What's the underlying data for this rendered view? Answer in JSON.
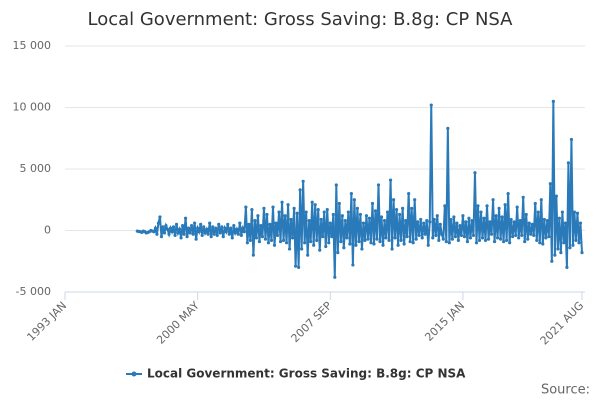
{
  "chart_data": {
    "type": "line",
    "title": "Local Government: Gross Saving: B.8g: CP NSA",
    "source": "Source:",
    "xlim": [
      "1993-01",
      "2021-10"
    ],
    "xticks": [
      {
        "value": "1993-01",
        "label": "1993 JAN"
      },
      {
        "value": "2000-05",
        "label": "2000 MAY"
      },
      {
        "value": "2007-09",
        "label": "2007 SEP"
      },
      {
        "value": "2015-01",
        "label": "2015 JAN"
      },
      {
        "value": "2021-08",
        "label": "2021 AUG"
      }
    ],
    "ylim": [
      -5000,
      15000
    ],
    "yticks": [
      {
        "value": -5000,
        "label": "-5 000"
      },
      0,
      {
        "value": 5000,
        "label": "5 000"
      },
      {
        "value": 10000,
        "label": "10 000"
      },
      {
        "value": 15000,
        "label": "15 000"
      }
    ],
    "grid": true,
    "legend": "bottom",
    "x": [
      "1997-01",
      "1997-02",
      "1997-03",
      "1997-04",
      "1997-05",
      "1997-06",
      "1997-07",
      "1997-08",
      "1997-09",
      "1997-10",
      "1997-11",
      "1997-12",
      "1998-01",
      "1998-02",
      "1998-03",
      "1998-04",
      "1998-05",
      "1998-06",
      "1998-07",
      "1998-08",
      "1998-09",
      "1998-10",
      "1998-11",
      "1998-12",
      "1999-01",
      "1999-02",
      "1999-03",
      "1999-04",
      "1999-05",
      "1999-06",
      "1999-07",
      "1999-08",
      "1999-09",
      "1999-10",
      "1999-11",
      "1999-12",
      "2000-01",
      "2000-02",
      "2000-03",
      "2000-04",
      "2000-05",
      "2000-06",
      "2000-07",
      "2000-08",
      "2000-09",
      "2000-10",
      "2000-11",
      "2000-12",
      "2001-01",
      "2001-02",
      "2001-03",
      "2001-04",
      "2001-05",
      "2001-06",
      "2001-07",
      "2001-08",
      "2001-09",
      "2001-10",
      "2001-11",
      "2001-12",
      "2002-01",
      "2002-02",
      "2002-03",
      "2002-04",
      "2002-05",
      "2002-06",
      "2002-07",
      "2002-08",
      "2002-09",
      "2002-10",
      "2002-11",
      "2002-12",
      "2003-01",
      "2003-02",
      "2003-03",
      "2003-04",
      "2003-05",
      "2003-06",
      "2003-07",
      "2003-08",
      "2003-09",
      "2003-10",
      "2003-11",
      "2003-12",
      "2004-01",
      "2004-02",
      "2004-03",
      "2004-04",
      "2004-05",
      "2004-06",
      "2004-07",
      "2004-08",
      "2004-09",
      "2004-10",
      "2004-11",
      "2004-12",
      "2005-01",
      "2005-02",
      "2005-03",
      "2005-04",
      "2005-05",
      "2005-06",
      "2005-07",
      "2005-08",
      "2005-09",
      "2005-10",
      "2005-11",
      "2005-12",
      "2006-01",
      "2006-02",
      "2006-03",
      "2006-04",
      "2006-05",
      "2006-06",
      "2006-07",
      "2006-08",
      "2006-09",
      "2006-10",
      "2006-11",
      "2006-12",
      "2007-01",
      "2007-02",
      "2007-03",
      "2007-04",
      "2007-05",
      "2007-06",
      "2007-07",
      "2007-08",
      "2007-09",
      "2007-10",
      "2007-11",
      "2007-12",
      "2008-01",
      "2008-02",
      "2008-03",
      "2008-04",
      "2008-05",
      "2008-06",
      "2008-07",
      "2008-08",
      "2008-09",
      "2008-10",
      "2008-11",
      "2008-12",
      "2009-01",
      "2009-02",
      "2009-03",
      "2009-04",
      "2009-05",
      "2009-06",
      "2009-07",
      "2009-08",
      "2009-09",
      "2009-10",
      "2009-11",
      "2009-12",
      "2010-01",
      "2010-02",
      "2010-03",
      "2010-04",
      "2010-05",
      "2010-06",
      "2010-07",
      "2010-08",
      "2010-09",
      "2010-10",
      "2010-11",
      "2010-12",
      "2011-01",
      "2011-02",
      "2011-03",
      "2011-04",
      "2011-05",
      "2011-06",
      "2011-07",
      "2011-08",
      "2011-09",
      "2011-10",
      "2011-11",
      "2011-12",
      "2012-01",
      "2012-02",
      "2012-03",
      "2012-04",
      "2012-05",
      "2012-06",
      "2012-07",
      "2012-08",
      "2012-09",
      "2012-10",
      "2012-11",
      "2012-12",
      "2013-01",
      "2013-02",
      "2013-03",
      "2013-04",
      "2013-05",
      "2013-06",
      "2013-07",
      "2013-08",
      "2013-09",
      "2013-10",
      "2013-11",
      "2013-12",
      "2014-01",
      "2014-02",
      "2014-03",
      "2014-04",
      "2014-05",
      "2014-06",
      "2014-07",
      "2014-08",
      "2014-09",
      "2014-10",
      "2014-11",
      "2014-12",
      "2015-01",
      "2015-02",
      "2015-03",
      "2015-04",
      "2015-05",
      "2015-06",
      "2015-07",
      "2015-08",
      "2015-09",
      "2015-10",
      "2015-11",
      "2015-12",
      "2016-01",
      "2016-02",
      "2016-03",
      "2016-04",
      "2016-05",
      "2016-06",
      "2016-07",
      "2016-08",
      "2016-09",
      "2016-10",
      "2016-11",
      "2016-12",
      "2017-01",
      "2017-02",
      "2017-03",
      "2017-04",
      "2017-05",
      "2017-06",
      "2017-07",
      "2017-08",
      "2017-09",
      "2017-10",
      "2017-11",
      "2017-12",
      "2018-01",
      "2018-02",
      "2018-03",
      "2018-04",
      "2018-05",
      "2018-06",
      "2018-07",
      "2018-08",
      "2018-09",
      "2018-10",
      "2018-11",
      "2018-12",
      "2019-01",
      "2019-02",
      "2019-03",
      "2019-04",
      "2019-05",
      "2019-06",
      "2019-07",
      "2019-08",
      "2019-09",
      "2019-10",
      "2019-11",
      "2019-12",
      "2020-01",
      "2020-02",
      "2020-03",
      "2020-04",
      "2020-05",
      "2020-06",
      "2020-07",
      "2020-08",
      "2020-09",
      "2020-10",
      "2020-11",
      "2020-12",
      "2021-01",
      "2021-02",
      "2021-03",
      "2021-04",
      "2021-05",
      "2021-06",
      "2021-07",
      "2021-08"
    ],
    "series": [
      {
        "name": "Local Government: Gross Saving: B.8g: CP NSA",
        "color": "#2a7ab9",
        "values": [
          -50,
          -80,
          -100,
          -150,
          -50,
          -100,
          -200,
          -150,
          -100,
          0,
          -50,
          -100,
          200,
          -300,
          600,
          1100,
          -500,
          300,
          -200,
          400,
          100,
          -300,
          200,
          -100,
          300,
          -400,
          500,
          -200,
          100,
          -600,
          400,
          -300,
          1000,
          -500,
          200,
          -200,
          400,
          -300,
          600,
          -700,
          200,
          -100,
          500,
          -400,
          300,
          -200,
          100,
          -300,
          600,
          -500,
          300,
          -300,
          200,
          -400,
          500,
          -200,
          300,
          -500,
          200,
          -100,
          500,
          -300,
          200,
          -600,
          400,
          -200,
          100,
          -300,
          600,
          -400,
          200,
          -100,
          1900,
          -1000,
          500,
          -800,
          1700,
          -2000,
          800,
          -600,
          1200,
          -900,
          400,
          -500,
          1800,
          -700,
          1300,
          -1000,
          500,
          -800,
          1900,
          -1200,
          600,
          -400,
          1500,
          -900,
          2300,
          -800,
          1200,
          -1000,
          2100,
          -1500,
          900,
          -600,
          1800,
          -2900,
          1400,
          -3000,
          3300,
          -1500,
          4000,
          -1000,
          1500,
          -2000,
          800,
          -900,
          2300,
          -1200,
          2100,
          -800,
          1700,
          -1600,
          900,
          -500,
          1500,
          -1300,
          1700,
          -1000,
          600,
          -500,
          1300,
          -3800,
          3700,
          -1800,
          2200,
          -900,
          1200,
          -1400,
          800,
          -600,
          1500,
          -1100,
          3000,
          -2800,
          2500,
          -1200,
          1800,
          -900,
          1300,
          -1500,
          600,
          -800,
          1200,
          -700,
          1000,
          -1000,
          2200,
          -1100,
          1600,
          -700,
          3700,
          -900,
          1100,
          -1200,
          800,
          -600,
          1500,
          -800,
          4100,
          -1500,
          2500,
          -600,
          1700,
          -1200,
          1300,
          -800,
          1800,
          -1100,
          800,
          -500,
          3000,
          -900,
          1800,
          -1000,
          2500,
          -700,
          700,
          -400,
          900,
          -600,
          600,
          -300,
          800,
          -1200,
          700,
          10200,
          -600,
          900,
          -400,
          1200,
          -800,
          500,
          -300,
          -700,
          2000,
          -900,
          8300,
          -1000,
          900,
          -700,
          1100,
          -500,
          600,
          -800,
          400,
          -400,
          1200,
          -500,
          700,
          -900,
          1000,
          -600,
          800,
          -400,
          4700,
          -1000,
          2000,
          -800,
          1500,
          -600,
          1000,
          -800,
          2000,
          -700,
          700,
          -300,
          2500,
          -900,
          1200,
          -600,
          1800,
          -700,
          1100,
          -900,
          2100,
          -800,
          3000,
          -1000,
          900,
          -500,
          700,
          -400,
          1900,
          -600,
          800,
          -400,
          2700,
          -900,
          1300,
          -700,
          600,
          -300,
          500,
          -400,
          2200,
          -800,
          1500,
          -1000,
          2500,
          -1100,
          900,
          -600,
          800,
          -500,
          3800,
          -2500,
          10500,
          -2000,
          2800,
          -1500,
          1000,
          -1800,
          1500,
          -1000,
          600,
          -3000,
          5500,
          -1400,
          7400,
          -1200,
          1500,
          -800,
          1400,
          -1000,
          600,
          -1800
        ]
      }
    ]
  }
}
